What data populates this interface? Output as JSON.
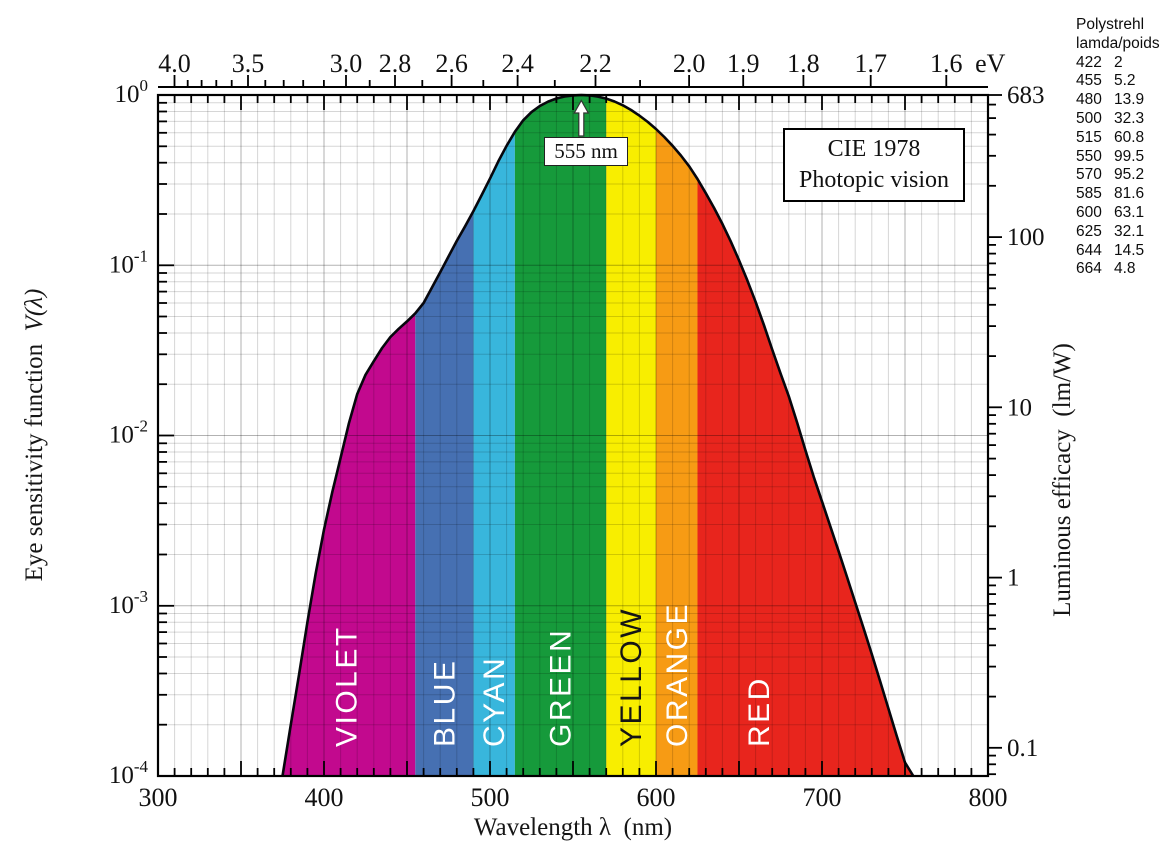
{
  "chart_data": {
    "type": "area",
    "title_box": [
      "CIE 1978",
      "Photopic vision"
    ],
    "xlabel": "Wavelength λ  (nm)",
    "ylabel_left": "Eye sensitivity function",
    "ylabel_left_math": "V(λ)",
    "ylabel_right": "Luminous efficacy  (lm/W)",
    "peak_label": "555 nm",
    "peak_wavelength": 555,
    "x_axis": {
      "min": 300,
      "max": 800,
      "major_ticks": [
        300,
        400,
        500,
        600,
        700,
        800
      ],
      "minor_step_nm": 10,
      "medium_step_nm": 50
    },
    "y_axis_left": {
      "scale": "log",
      "min": 0.0001,
      "max": 1,
      "tick_exponents": [
        0,
        -1,
        -2,
        -3,
        -4
      ]
    },
    "top_axis": {
      "unit": "eV",
      "labeled_ticks": [
        4.0,
        3.5,
        3.0,
        2.8,
        2.6,
        2.4,
        2.2,
        2.0,
        1.9,
        1.8,
        1.7,
        1.6
      ],
      "minor_step_ev": 0.1,
      "ev_nm_constant": 1239.84
    },
    "right_axis": {
      "unit": "lm/W",
      "peak_value": 683,
      "labeled_ticks": [
        683,
        100,
        10,
        1,
        0.1
      ]
    },
    "bands": [
      {
        "label": "VIOLET",
        "from": 372,
        "to": 455,
        "color": "#c2098e",
        "label_color": "#ffffff"
      },
      {
        "label": "BLUE",
        "from": 455,
        "to": 490,
        "color": "#4670b2",
        "label_color": "#ffffff"
      },
      {
        "label": "CYAN",
        "from": 490,
        "to": 515,
        "color": "#38b6dc",
        "label_color": "#ffffff"
      },
      {
        "label": "GREEN",
        "from": 515,
        "to": 570,
        "color": "#169a3b",
        "label_color": "#ffffff"
      },
      {
        "label": "YELLOW",
        "from": 570,
        "to": 600,
        "color": "#f8ee00",
        "label_color": "#151515"
      },
      {
        "label": "ORANGE",
        "from": 600,
        "to": 625,
        "color": "#f79b14",
        "label_color": "#ffffff"
      },
      {
        "label": "RED",
        "from": 625,
        "to": 756,
        "color": "#e8251d",
        "label_color": "#ffffff",
        "label_nm": 662
      }
    ],
    "series": {
      "name": "V(λ) CIE 1978 photopic",
      "wavelength_nm": [
        375,
        380,
        385,
        390,
        395,
        400,
        405,
        410,
        415,
        420,
        425,
        430,
        435,
        440,
        445,
        450,
        455,
        460,
        465,
        470,
        475,
        480,
        485,
        490,
        495,
        500,
        505,
        510,
        515,
        520,
        525,
        530,
        535,
        540,
        545,
        550,
        555,
        560,
        565,
        570,
        575,
        580,
        585,
        590,
        595,
        600,
        605,
        610,
        615,
        620,
        625,
        630,
        635,
        640,
        645,
        650,
        655,
        660,
        665,
        670,
        675,
        680,
        685,
        690,
        695,
        700,
        705,
        710,
        715,
        720,
        725,
        730,
        735,
        740,
        745,
        750,
        755
      ],
      "values": [
        0.0001,
        0.0002,
        0.000396,
        0.0008,
        0.00155,
        0.0028,
        0.00466,
        0.0074,
        0.01179,
        0.0175,
        0.02273,
        0.0273,
        0.03264,
        0.0379,
        0.04233,
        0.0468,
        0.05218,
        0.06,
        0.0739,
        0.09098,
        0.11258,
        0.13902,
        0.1693,
        0.20802,
        0.2586,
        0.323,
        0.4073,
        0.503,
        0.6082,
        0.71,
        0.7932,
        0.862,
        0.91485,
        0.954,
        0.9803,
        0.99495,
        1.0,
        0.995,
        0.9786,
        0.952,
        0.9154,
        0.87,
        0.8163,
        0.757,
        0.6949,
        0.631,
        0.5668,
        0.503,
        0.4412,
        0.381,
        0.321,
        0.265,
        0.217,
        0.175,
        0.1382,
        0.107,
        0.0816,
        0.061,
        0.0446,
        0.032,
        0.0232,
        0.017,
        0.01192,
        0.00821,
        0.005723,
        0.004102,
        0.002929,
        0.002091,
        0.001484,
        0.001047,
        0.00074,
        0.00052,
        0.0003611,
        0.0002492,
        0.0001719,
        0.00012,
        8.5e-05
      ]
    }
  },
  "side_table": {
    "title": "Polystrehl",
    "subtitle": "lamda/poids",
    "rows": [
      [
        "422",
        "2"
      ],
      [
        "455",
        "5.2"
      ],
      [
        "480",
        "13.9"
      ],
      [
        "500",
        "32.3"
      ],
      [
        "515",
        "60.8"
      ],
      [
        "550",
        "99.5"
      ],
      [
        "570",
        "95.2"
      ],
      [
        "585",
        "81.6"
      ],
      [
        "600",
        "63.1"
      ],
      [
        "625",
        "32.1"
      ],
      [
        "644",
        "14.5"
      ],
      [
        "664",
        "4.8"
      ]
    ]
  }
}
